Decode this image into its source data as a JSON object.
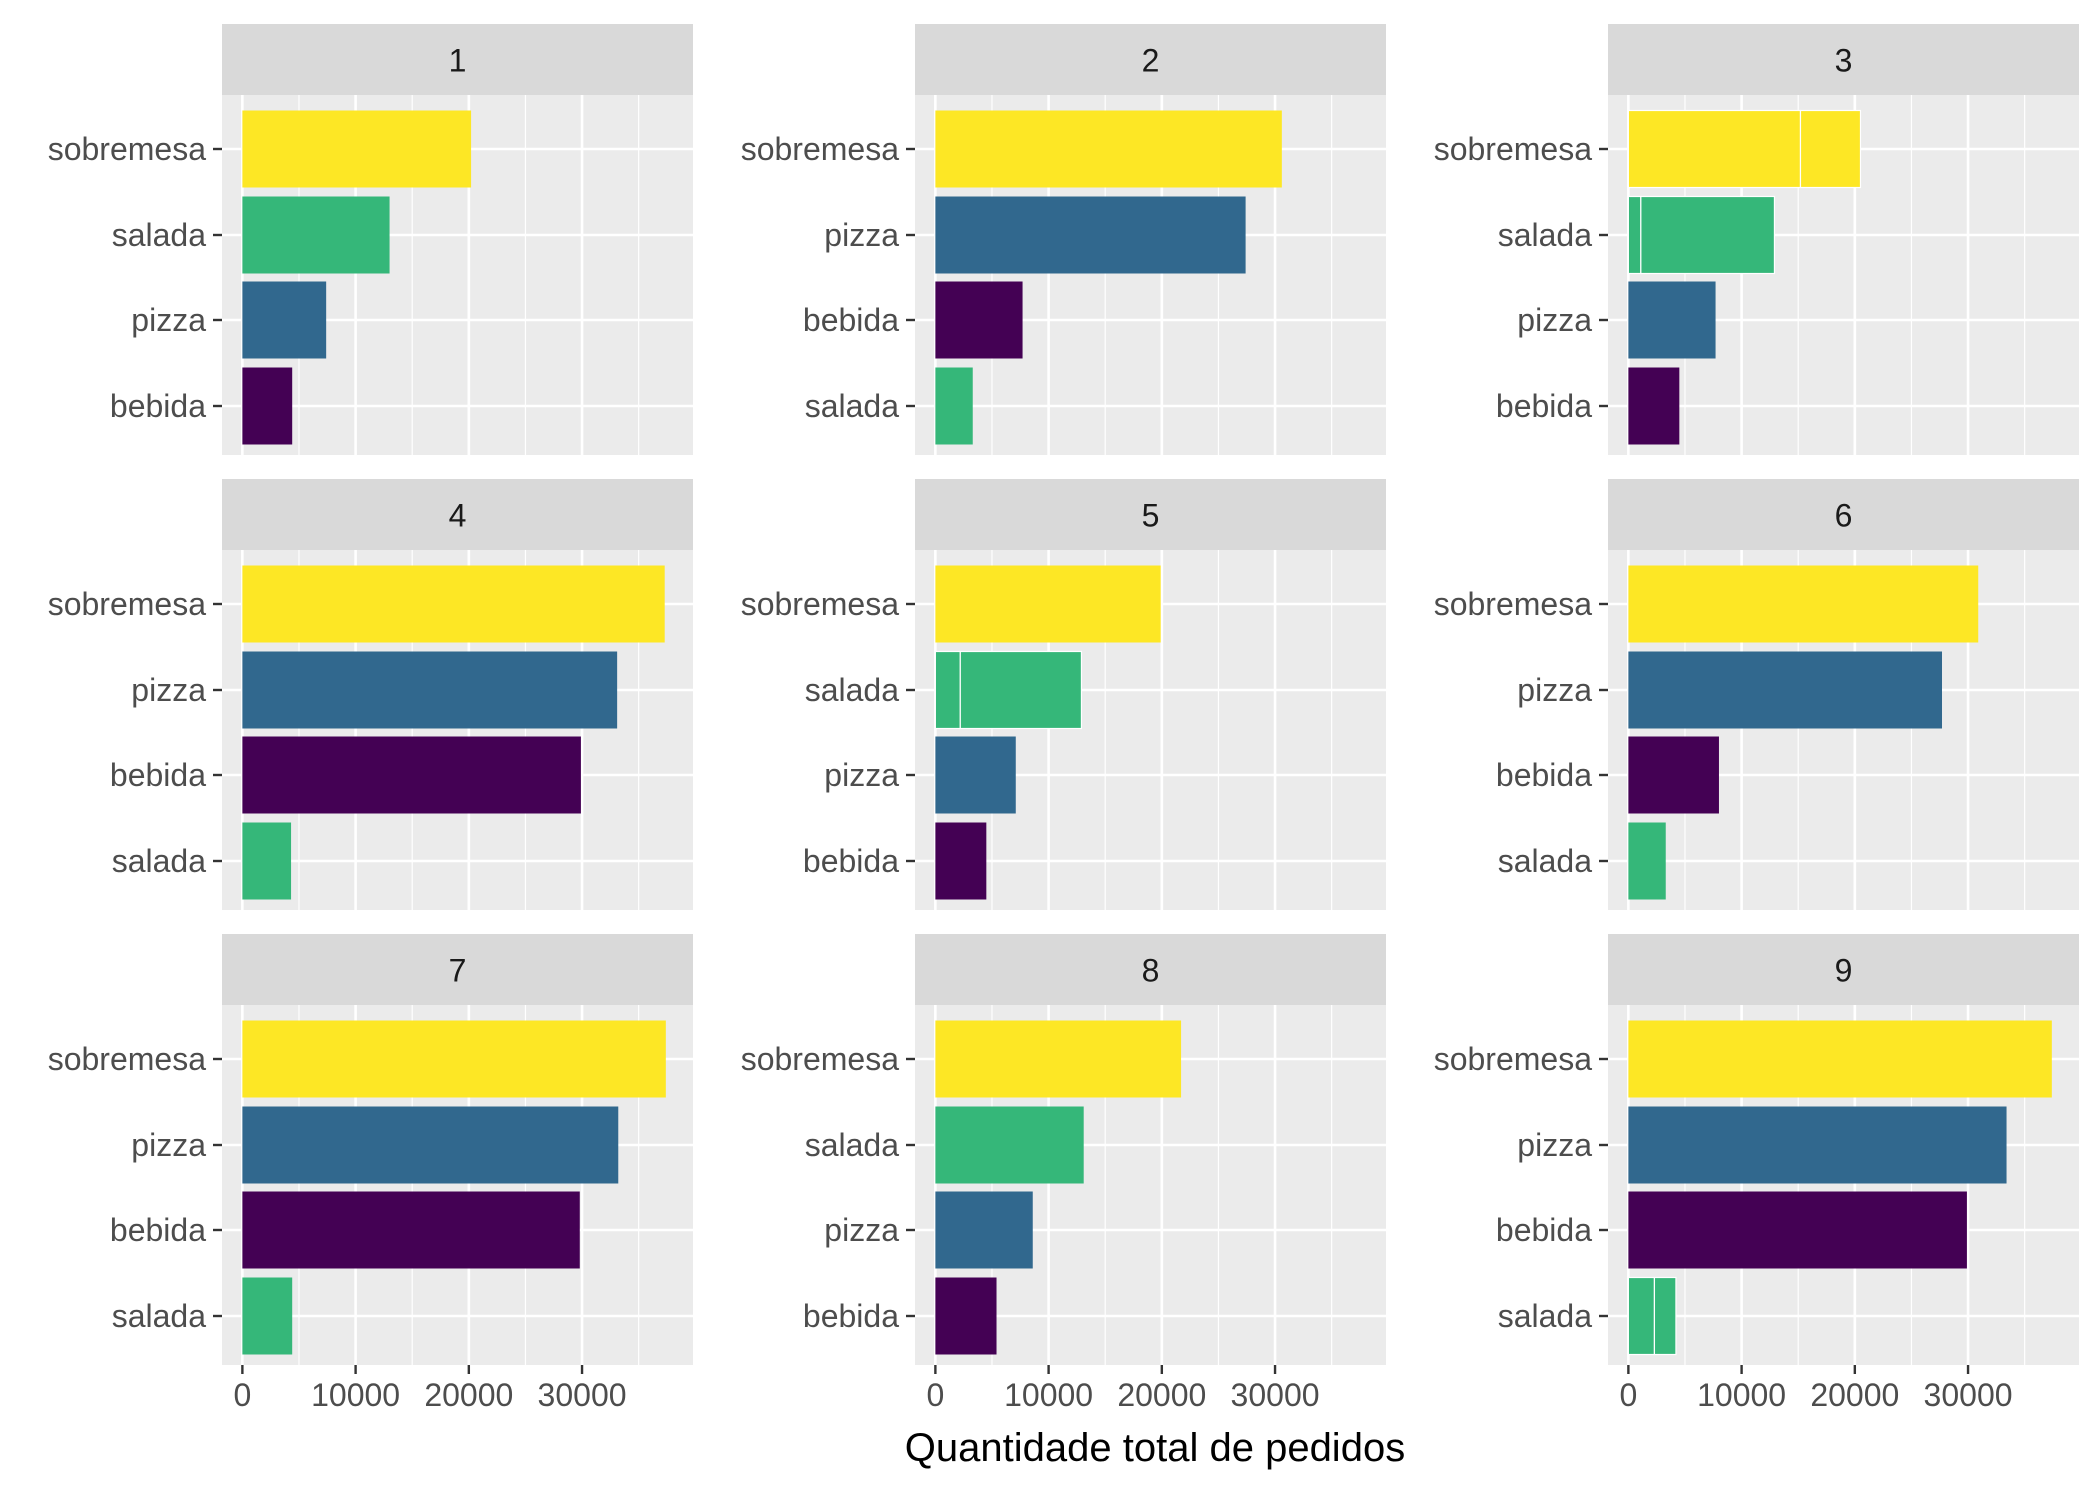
{
  "chart_data": {
    "type": "bar",
    "orientation": "horizontal",
    "facet": "wrap",
    "xlabel": "Quantidade total de pedidos",
    "xlim": [
      -1800,
      39800
    ],
    "xticks": [
      0,
      10000,
      20000,
      30000
    ],
    "grid": true,
    "legend": "none",
    "colors": {
      "bebida": "#440154",
      "pizza": "#31688E",
      "salada": "#35B779",
      "sobremesa": "#FDE725"
    },
    "panel_style": {
      "background": "#EBEBEB",
      "grid": "#FFFFFF",
      "strip": "#D9D9D9"
    },
    "panels": [
      {
        "title": "1",
        "bars": [
          {
            "category": "sobremesa",
            "value": 20200
          },
          {
            "category": "salada",
            "value": 13000
          },
          {
            "category": "pizza",
            "value": 7400
          },
          {
            "category": "bebida",
            "value": 4400
          }
        ]
      },
      {
        "title": "2",
        "bars": [
          {
            "category": "sobremesa",
            "value": 30600
          },
          {
            "category": "pizza",
            "value": 27400
          },
          {
            "category": "bebida",
            "value": 7700
          },
          {
            "category": "salada",
            "value": 3300
          }
        ]
      },
      {
        "title": "3",
        "bars": [
          {
            "category": "sobremesa",
            "value": 20500,
            "segments": [
              15200,
              5300
            ]
          },
          {
            "category": "salada",
            "value": 12900,
            "segments": [
              1100,
              11800
            ]
          },
          {
            "category": "pizza",
            "value": 7700
          },
          {
            "category": "bebida",
            "value": 4500
          }
        ]
      },
      {
        "title": "4",
        "bars": [
          {
            "category": "sobremesa",
            "value": 37300
          },
          {
            "category": "pizza",
            "value": 33100
          },
          {
            "category": "bebida",
            "value": 29900
          },
          {
            "category": "salada",
            "value": 4300
          }
        ]
      },
      {
        "title": "5",
        "bars": [
          {
            "category": "sobremesa",
            "value": 19900
          },
          {
            "category": "salada",
            "value": 12900,
            "segments": [
              2200,
              10700
            ]
          },
          {
            "category": "pizza",
            "value": 7100
          },
          {
            "category": "bebida",
            "value": 4500
          }
        ]
      },
      {
        "title": "6",
        "bars": [
          {
            "category": "sobremesa",
            "value": 30900
          },
          {
            "category": "pizza",
            "value": 27700
          },
          {
            "category": "bebida",
            "value": 8000
          },
          {
            "category": "salada",
            "value": 3300
          }
        ]
      },
      {
        "title": "7",
        "bars": [
          {
            "category": "sobremesa",
            "value": 37400
          },
          {
            "category": "pizza",
            "value": 33200
          },
          {
            "category": "bebida",
            "value": 29800
          },
          {
            "category": "salada",
            "value": 4400
          }
        ]
      },
      {
        "title": "8",
        "bars": [
          {
            "category": "sobremesa",
            "value": 21700
          },
          {
            "category": "salada",
            "value": 13100
          },
          {
            "category": "pizza",
            "value": 8600
          },
          {
            "category": "bebida",
            "value": 5400
          }
        ]
      },
      {
        "title": "9",
        "bars": [
          {
            "category": "sobremesa",
            "value": 37400
          },
          {
            "category": "pizza",
            "value": 33400
          },
          {
            "category": "bebida",
            "value": 29900
          },
          {
            "category": "salada",
            "value": 4200,
            "segments": [
              2300,
              1900
            ]
          }
        ]
      }
    ]
  }
}
